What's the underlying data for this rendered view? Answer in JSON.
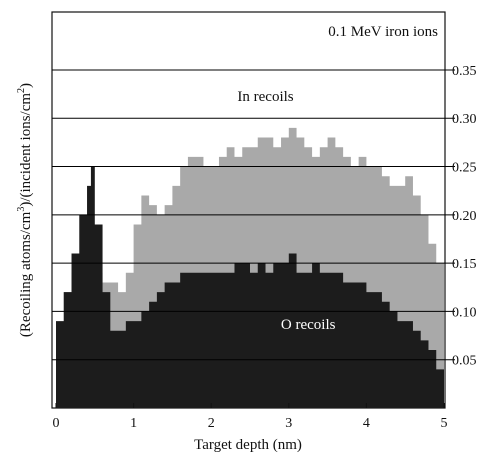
{
  "chart_data": {
    "type": "area",
    "annotation_top": "0.1 MeV iron ions",
    "xlabel": "Target depth (nm)",
    "ylabel_html": "(Recoiling atoms/cm3)/(incident ions/cm2)",
    "ylabel_parts": {
      "a": "(Recoiling atoms/cm",
      "a_sup": "3",
      "b": ")/(incident ions/cm",
      "b_sup": "2",
      "c": ")"
    },
    "xlim": [
      0,
      5
    ],
    "ylim": [
      0,
      0.41
    ],
    "x_ticks": [
      "0",
      "1",
      "2",
      "3",
      "4",
      "5"
    ],
    "y_ticks": [
      "0.05",
      "0.10",
      "0.15",
      "0.20",
      "0.25",
      "0.30",
      "0.35"
    ],
    "horizontal_grid": true,
    "colors": {
      "in_recoils": "#a9a9a9",
      "o_recoils": "#1c1c1c",
      "grid": "#000000"
    },
    "series": [
      {
        "name": "In recoils",
        "label_at": [
          2.7,
          0.318
        ],
        "x": [
          0.0,
          0.1,
          0.2,
          0.3,
          0.4,
          0.5,
          0.6,
          0.7,
          0.8,
          0.9,
          1.0,
          1.1,
          1.2,
          1.3,
          1.4,
          1.5,
          1.6,
          1.7,
          1.8,
          1.9,
          2.0,
          2.1,
          2.2,
          2.3,
          2.4,
          2.5,
          2.6,
          2.7,
          2.8,
          2.9,
          3.0,
          3.1,
          3.2,
          3.3,
          3.4,
          3.5,
          3.6,
          3.7,
          3.8,
          3.9,
          4.0,
          4.1,
          4.2,
          4.3,
          4.4,
          4.5,
          4.6,
          4.7,
          4.8,
          4.9,
          5.0
        ],
        "values": [
          0.08,
          0.12,
          0.14,
          0.15,
          0.15,
          0.14,
          0.13,
          0.13,
          0.12,
          0.14,
          0.19,
          0.22,
          0.21,
          0.2,
          0.21,
          0.23,
          0.25,
          0.26,
          0.26,
          0.25,
          0.25,
          0.26,
          0.27,
          0.26,
          0.27,
          0.27,
          0.28,
          0.28,
          0.27,
          0.28,
          0.29,
          0.28,
          0.27,
          0.26,
          0.27,
          0.28,
          0.27,
          0.26,
          0.25,
          0.26,
          0.25,
          0.25,
          0.24,
          0.23,
          0.23,
          0.24,
          0.22,
          0.2,
          0.17,
          0.15,
          0.12
        ]
      },
      {
        "name": "O recoils",
        "label_at": [
          3.25,
          0.082
        ],
        "x": [
          0.0,
          0.1,
          0.2,
          0.3,
          0.4,
          0.45,
          0.5,
          0.6,
          0.7,
          0.8,
          0.9,
          1.0,
          1.1,
          1.2,
          1.3,
          1.4,
          1.5,
          1.6,
          1.7,
          1.8,
          1.9,
          2.0,
          2.1,
          2.2,
          2.3,
          2.4,
          2.5,
          2.6,
          2.7,
          2.8,
          2.9,
          3.0,
          3.1,
          3.2,
          3.3,
          3.4,
          3.5,
          3.6,
          3.7,
          3.8,
          3.9,
          4.0,
          4.1,
          4.2,
          4.3,
          4.4,
          4.5,
          4.6,
          4.7,
          4.8,
          4.9,
          5.0
        ],
        "values": [
          0.09,
          0.12,
          0.16,
          0.2,
          0.23,
          0.25,
          0.19,
          0.12,
          0.08,
          0.08,
          0.09,
          0.09,
          0.1,
          0.11,
          0.12,
          0.13,
          0.13,
          0.14,
          0.14,
          0.14,
          0.14,
          0.14,
          0.14,
          0.14,
          0.15,
          0.15,
          0.14,
          0.15,
          0.14,
          0.15,
          0.15,
          0.16,
          0.14,
          0.14,
          0.15,
          0.14,
          0.14,
          0.14,
          0.13,
          0.13,
          0.13,
          0.12,
          0.12,
          0.11,
          0.1,
          0.09,
          0.09,
          0.08,
          0.07,
          0.06,
          0.04,
          0.04
        ]
      }
    ]
  }
}
